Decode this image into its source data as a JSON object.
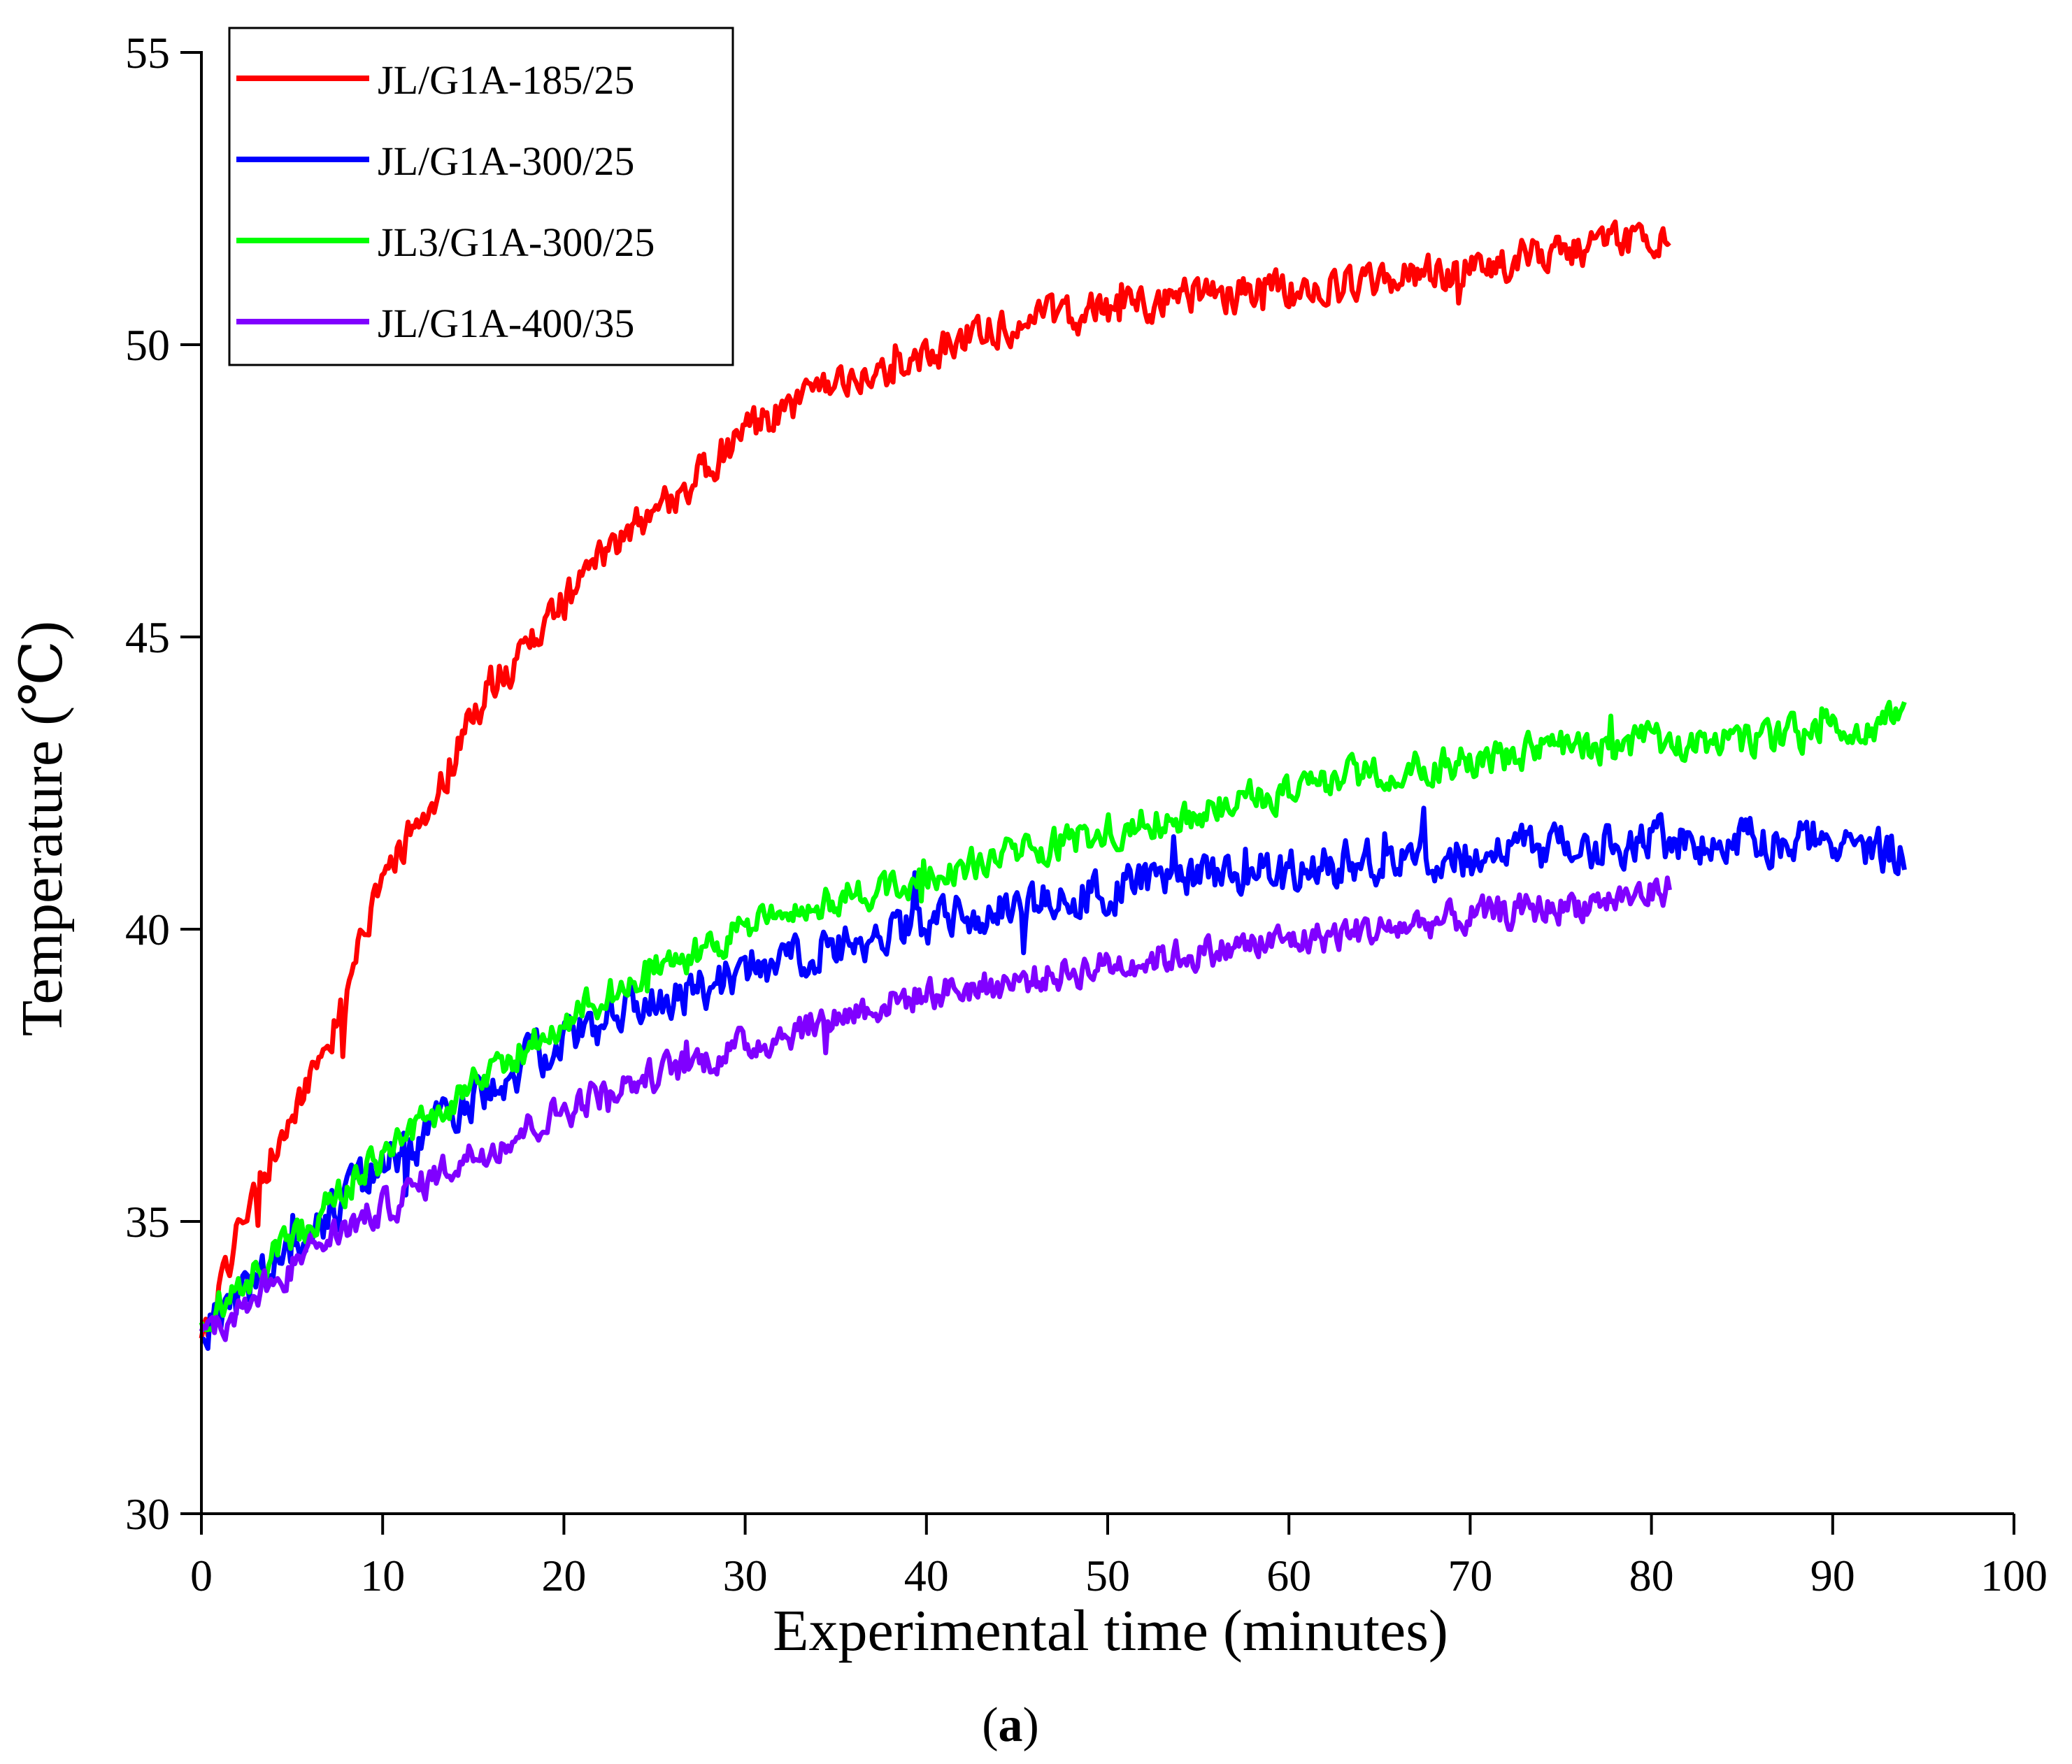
{
  "chart_data": {
    "type": "line",
    "title": "",
    "xlabel": "Experimental time (minutes)",
    "ylabel": "Temperature (℃)",
    "xlim": [
      0,
      100
    ],
    "ylim": [
      30,
      55
    ],
    "xticks": [
      0,
      10,
      20,
      30,
      40,
      50,
      60,
      70,
      80,
      90,
      100
    ],
    "yticks": [
      30,
      35,
      40,
      45,
      50,
      55
    ],
    "grid": false,
    "legend_position": "top-left",
    "caption": "(a)",
    "caption_letter": "a",
    "series": [
      {
        "name": "JL/G1A-185/25",
        "color": "#ff0000",
        "noise": 0.5,
        "x": [
          0,
          1,
          2,
          4,
          6,
          8,
          10,
          12,
          14,
          16,
          18,
          20,
          22,
          25,
          28,
          30,
          33,
          36,
          40,
          43,
          45,
          50,
          55,
          60,
          65,
          70,
          75,
          80,
          81
        ],
        "y": [
          32.8,
          33.8,
          34.8,
          36.2,
          37.5,
          38.8,
          40.8,
          41.8,
          43.0,
          44.2,
          44.8,
          45.6,
          46.3,
          47.2,
          47.9,
          48.6,
          49.0,
          49.3,
          49.8,
          50.3,
          50.4,
          50.6,
          50.9,
          50.9,
          51.1,
          51.3,
          51.6,
          51.8,
          51.9
        ]
      },
      {
        "name": "JL/G1A-300/25",
        "color": "#0000ff",
        "noise": 0.6,
        "x": [
          0,
          2,
          4,
          6,
          8,
          10,
          12,
          14,
          16,
          18,
          20,
          22,
          25,
          28,
          30,
          33,
          36,
          40,
          45,
          50,
          55,
          60,
          65,
          70,
          75,
          80,
          85,
          90,
          94
        ],
        "y": [
          33.2,
          33.6,
          34.2,
          34.8,
          35.4,
          36.0,
          36.4,
          36.9,
          37.4,
          37.7,
          38.1,
          38.4,
          38.8,
          39.0,
          39.3,
          39.6,
          39.8,
          40.1,
          40.4,
          40.7,
          40.9,
          41.0,
          41.2,
          41.3,
          41.4,
          41.5,
          41.5,
          41.6,
          41.3
        ]
      },
      {
        "name": "JL3/G1A-300/25",
        "color": "#00ff00",
        "noise": 0.45,
        "x": [
          0,
          2,
          4,
          6,
          8,
          10,
          12,
          14,
          16,
          18,
          20,
          22,
          25,
          28,
          30,
          33,
          36,
          40,
          45,
          50,
          55,
          60,
          65,
          70,
          75,
          80,
          85,
          90,
          94
        ],
        "y": [
          33.3,
          33.8,
          34.4,
          35.0,
          35.6,
          36.1,
          36.6,
          37.1,
          37.6,
          38.0,
          38.4,
          38.8,
          39.3,
          39.7,
          40.0,
          40.3,
          40.6,
          40.9,
          41.3,
          41.7,
          42.0,
          42.4,
          42.7,
          42.9,
          43.1,
          43.2,
          43.2,
          43.4,
          43.6
        ]
      },
      {
        "name": "JL/G1A-400/35",
        "color": "#8000ff",
        "noise": 0.45,
        "x": [
          0,
          2,
          4,
          6,
          8,
          10,
          12,
          14,
          16,
          18,
          20,
          22,
          25,
          28,
          30,
          33,
          36,
          40,
          45,
          50,
          55,
          60,
          65,
          70,
          75,
          80,
          81
        ],
        "y": [
          33.0,
          33.5,
          34.0,
          34.5,
          34.9,
          35.2,
          35.6,
          36.0,
          36.3,
          36.6,
          36.9,
          37.2,
          37.5,
          37.8,
          38.0,
          38.3,
          38.6,
          38.9,
          39.1,
          39.4,
          39.6,
          39.8,
          40.0,
          40.2,
          40.4,
          40.6,
          40.7
        ]
      }
    ]
  }
}
